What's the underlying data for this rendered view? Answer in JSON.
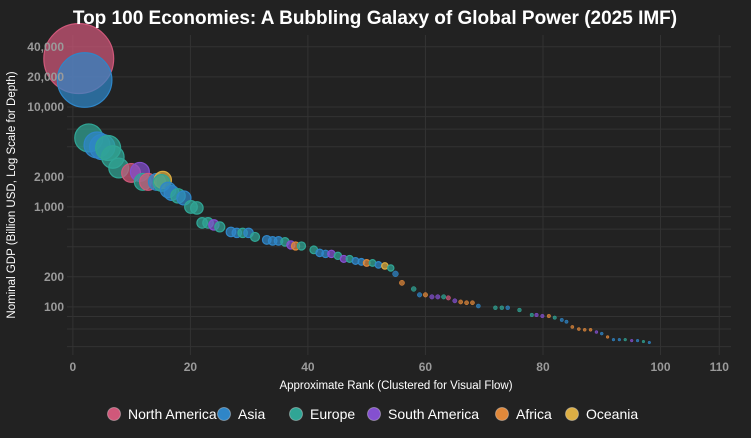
{
  "chart_data": {
    "type": "scatter",
    "title": "Top 100 Economies: A Bubbling Galaxy of Global Power (2025 IMF)",
    "xlabel": "Approximate Rank (Clustered for Visual Flow)",
    "ylabel": "Nominal GDP (Billion USD, Log Scale for Depth)",
    "xlim": [
      -1,
      112
    ],
    "ylim": [
      33,
      52500
    ],
    "yscale": "log",
    "grid": true,
    "legend_position": "bottom",
    "x_ticks": [
      "0",
      "20",
      "40",
      "60",
      "80",
      "100",
      "110"
    ],
    "x_tick_values": [
      0,
      20,
      40,
      60,
      80,
      100,
      110
    ],
    "y_ticks": [
      "40,000",
      "20,000",
      "10,000",
      "2,000",
      "1,000",
      "200",
      "100"
    ],
    "y_tick_values": [
      40000,
      20000,
      10000,
      2000,
      1000,
      200,
      100
    ],
    "y_grid_values": [
      40000,
      20000,
      10000,
      8000,
      6000,
      4000,
      2000,
      1000,
      800,
      600,
      400,
      200,
      100,
      80,
      60,
      40
    ],
    "regions": [
      {
        "name": "North America",
        "color": "#d0587a"
      },
      {
        "name": "Asia",
        "color": "#2f86c8"
      },
      {
        "name": "Europe",
        "color": "#30a595"
      },
      {
        "name": "South America",
        "color": "#8450d0"
      },
      {
        "name": "Africa",
        "color": "#e0883a"
      },
      {
        "name": "Oceania",
        "color": "#dcae44"
      }
    ],
    "points": [
      {
        "x": 1,
        "y": 30500,
        "region": "North America"
      },
      {
        "x": 2,
        "y": 18600,
        "region": "Asia"
      },
      {
        "x": 2.7,
        "y": 4900,
        "region": "Europe"
      },
      {
        "x": 4.1,
        "y": 4170,
        "region": "Asia"
      },
      {
        "x": 5,
        "y": 3980,
        "region": "Asia"
      },
      {
        "x": 6,
        "y": 3890,
        "region": "Europe"
      },
      {
        "x": 6.8,
        "y": 3160,
        "region": "Europe"
      },
      {
        "x": 7.8,
        "y": 2450,
        "region": "Europe"
      },
      {
        "x": 9.9,
        "y": 2190,
        "region": "North America"
      },
      {
        "x": 11.4,
        "y": 2240,
        "region": "South America"
      },
      {
        "x": 11.9,
        "y": 1780,
        "region": "Europe"
      },
      {
        "x": 12.8,
        "y": 1780,
        "region": "North America"
      },
      {
        "x": 14.3,
        "y": 1780,
        "region": "Asia"
      },
      {
        "x": 15.3,
        "y": 1860,
        "region": "Oceania"
      },
      {
        "x": 15.1,
        "y": 1740,
        "region": "Europe"
      },
      {
        "x": 16.2,
        "y": 1480,
        "region": "Asia"
      },
      {
        "x": 16.8,
        "y": 1380,
        "region": "Asia"
      },
      {
        "x": 17.9,
        "y": 1290,
        "region": "Europe"
      },
      {
        "x": 18.9,
        "y": 1230,
        "region": "Asia"
      },
      {
        "x": 20.1,
        "y": 1000,
        "region": "Europe"
      },
      {
        "x": 21.1,
        "y": 977,
        "region": "Europe"
      },
      {
        "x": 22,
        "y": 692,
        "region": "Europe"
      },
      {
        "x": 23,
        "y": 692,
        "region": "Europe"
      },
      {
        "x": 24,
        "y": 661,
        "region": "South America"
      },
      {
        "x": 25,
        "y": 631,
        "region": "Europe"
      },
      {
        "x": 26.9,
        "y": 562,
        "region": "Asia"
      },
      {
        "x": 27.9,
        "y": 550,
        "region": "Asia"
      },
      {
        "x": 28.9,
        "y": 550,
        "region": "Europe"
      },
      {
        "x": 29.9,
        "y": 550,
        "region": "Asia"
      },
      {
        "x": 31,
        "y": 501,
        "region": "Europe"
      },
      {
        "x": 33,
        "y": 468,
        "region": "Asia"
      },
      {
        "x": 34,
        "y": 457,
        "region": "Asia"
      },
      {
        "x": 35,
        "y": 457,
        "region": "Asia"
      },
      {
        "x": 36.1,
        "y": 447,
        "region": "Europe"
      },
      {
        "x": 37.1,
        "y": 417,
        "region": "South America"
      },
      {
        "x": 37.9,
        "y": 407,
        "region": "Africa"
      },
      {
        "x": 38.9,
        "y": 407,
        "region": "Europe"
      },
      {
        "x": 41,
        "y": 372,
        "region": "Europe"
      },
      {
        "x": 42,
        "y": 347,
        "region": "Asia"
      },
      {
        "x": 43,
        "y": 339,
        "region": "Asia"
      },
      {
        "x": 44,
        "y": 339,
        "region": "South America"
      },
      {
        "x": 45.1,
        "y": 324,
        "region": "Europe"
      },
      {
        "x": 46.1,
        "y": 302,
        "region": "South America"
      },
      {
        "x": 47.1,
        "y": 302,
        "region": "Europe"
      },
      {
        "x": 48.1,
        "y": 288,
        "region": "Asia"
      },
      {
        "x": 49.1,
        "y": 282,
        "region": "Asia"
      },
      {
        "x": 50,
        "y": 275,
        "region": "Africa"
      },
      {
        "x": 51,
        "y": 275,
        "region": "Europe"
      },
      {
        "x": 52,
        "y": 263,
        "region": "Asia"
      },
      {
        "x": 53.1,
        "y": 257,
        "region": "Oceania"
      },
      {
        "x": 54.1,
        "y": 245,
        "region": "Europe"
      },
      {
        "x": 54.9,
        "y": 214,
        "region": "Asia"
      },
      {
        "x": 56,
        "y": 174,
        "region": "Africa"
      },
      {
        "x": 58,
        "y": 151,
        "region": "Europe"
      },
      {
        "x": 59,
        "y": 132,
        "region": "Asia"
      },
      {
        "x": 60,
        "y": 132,
        "region": "Africa"
      },
      {
        "x": 61.1,
        "y": 126,
        "region": "South America"
      },
      {
        "x": 62.1,
        "y": 126,
        "region": "South America"
      },
      {
        "x": 63.1,
        "y": 126,
        "region": "Europe"
      },
      {
        "x": 63.9,
        "y": 123,
        "region": "North America"
      },
      {
        "x": 65,
        "y": 115,
        "region": "South America"
      },
      {
        "x": 66,
        "y": 112,
        "region": "Africa"
      },
      {
        "x": 67,
        "y": 110,
        "region": "Africa"
      },
      {
        "x": 68,
        "y": 110,
        "region": "Africa"
      },
      {
        "x": 69,
        "y": 102,
        "region": "Asia"
      },
      {
        "x": 71.9,
        "y": 98,
        "region": "Europe"
      },
      {
        "x": 73,
        "y": 98,
        "region": "Europe"
      },
      {
        "x": 74,
        "y": 98,
        "region": "Asia"
      },
      {
        "x": 76,
        "y": 93,
        "region": "Europe"
      },
      {
        "x": 78.1,
        "y": 83,
        "region": "Europe"
      },
      {
        "x": 78.9,
        "y": 83,
        "region": "South America"
      },
      {
        "x": 79.9,
        "y": 81,
        "region": "South America"
      },
      {
        "x": 81,
        "y": 81,
        "region": "Africa"
      },
      {
        "x": 82,
        "y": 78,
        "region": "Europe"
      },
      {
        "x": 83.2,
        "y": 74,
        "region": "Asia"
      },
      {
        "x": 84,
        "y": 71,
        "region": "Asia"
      },
      {
        "x": 85,
        "y": 63,
        "region": "Africa"
      },
      {
        "x": 86.1,
        "y": 60,
        "region": "Africa"
      },
      {
        "x": 87.1,
        "y": 59,
        "region": "Africa"
      },
      {
        "x": 88.1,
        "y": 59,
        "region": "Africa"
      },
      {
        "x": 89.1,
        "y": 56,
        "region": "South America"
      },
      {
        "x": 90,
        "y": 54,
        "region": "Asia"
      },
      {
        "x": 91,
        "y": 50,
        "region": "Africa"
      },
      {
        "x": 92,
        "y": 47,
        "region": "Asia"
      },
      {
        "x": 93,
        "y": 47,
        "region": "Asia"
      },
      {
        "x": 94,
        "y": 47,
        "region": "Europe"
      },
      {
        "x": 95.1,
        "y": 46,
        "region": "South America"
      },
      {
        "x": 96.1,
        "y": 46,
        "region": "Asia"
      },
      {
        "x": 97.1,
        "y": 45,
        "region": "Europe"
      },
      {
        "x": 98.1,
        "y": 44,
        "region": "Asia"
      }
    ]
  }
}
